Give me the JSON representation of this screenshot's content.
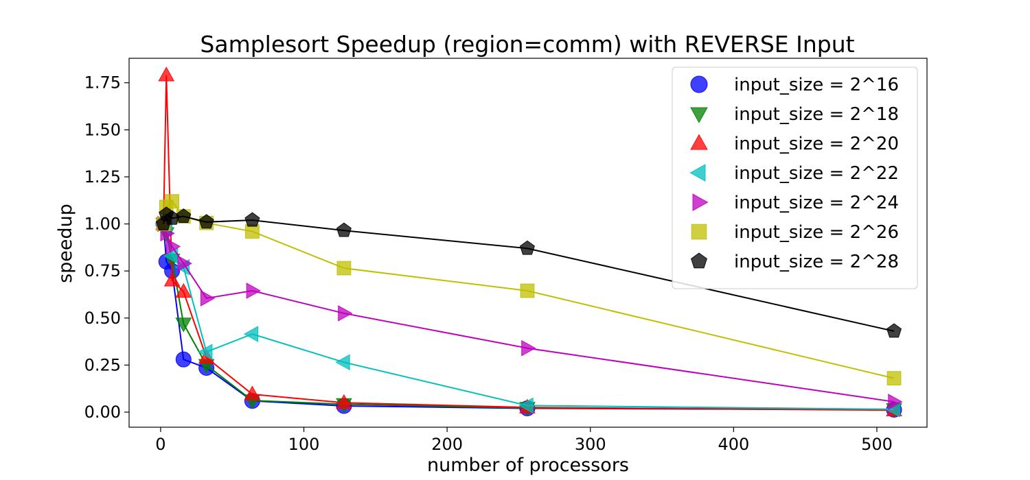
{
  "chart_data": {
    "type": "line",
    "title": "Samplesort Speedup (region=comm) with REVERSE Input",
    "xlabel": "number of processors",
    "ylabel": "speedup",
    "xlim": [
      -22,
      535
    ],
    "ylim": [
      -0.08,
      1.88
    ],
    "xticks": [
      0,
      100,
      200,
      300,
      400,
      500
    ],
    "yticks": [
      0.0,
      0.25,
      0.5,
      0.75,
      1.0,
      1.25,
      1.5,
      1.75
    ],
    "xtick_labels": [
      "0",
      "100",
      "200",
      "300",
      "400",
      "500"
    ],
    "ytick_labels": [
      "0.00",
      "0.25",
      "0.50",
      "0.75",
      "1.00",
      "1.25",
      "1.50",
      "1.75"
    ],
    "grid": false,
    "legend_position": "top-right",
    "x": [
      2,
      4,
      8,
      16,
      32,
      64,
      128,
      256,
      512
    ],
    "series": [
      {
        "name": "input_size = 2^16",
        "marker": "circle",
        "color": "#0000ff",
        "values": [
          1.0,
          0.8,
          0.75,
          0.28,
          0.235,
          0.06,
          0.033,
          0.02,
          0.013
        ]
      },
      {
        "name": "input_size = 2^18",
        "marker": "triangle-down",
        "color": "#008000",
        "values": [
          1.0,
          0.95,
          0.81,
          0.47,
          0.25,
          0.062,
          0.042,
          0.022,
          0.015
        ]
      },
      {
        "name": "input_size = 2^20",
        "marker": "triangle-up",
        "color": "#ff0000",
        "values": [
          1.0,
          1.79,
          0.7,
          0.64,
          0.29,
          0.095,
          0.05,
          0.025,
          0.01
        ]
      },
      {
        "name": "input_size = 2^22",
        "marker": "triangle-left",
        "color": "#00bfbf",
        "values": [
          1.0,
          0.98,
          0.83,
          0.77,
          0.32,
          0.415,
          0.265,
          0.035,
          0.015
        ]
      },
      {
        "name": "input_size = 2^24",
        "marker": "triangle-right",
        "color": "#bf00bf",
        "values": [
          1.0,
          0.95,
          0.88,
          0.79,
          0.605,
          0.645,
          0.525,
          0.34,
          0.055
        ]
      },
      {
        "name": "input_size = 2^26",
        "marker": "square",
        "color": "#bfbf00",
        "values": [
          1.0,
          1.09,
          1.12,
          1.04,
          1.005,
          0.96,
          0.765,
          0.645,
          0.18
        ]
      },
      {
        "name": "input_size = 2^28",
        "marker": "pentagon",
        "color": "#000000",
        "values": [
          1.0,
          1.05,
          1.03,
          1.04,
          1.01,
          1.02,
          0.965,
          0.87,
          0.43
        ]
      }
    ]
  }
}
